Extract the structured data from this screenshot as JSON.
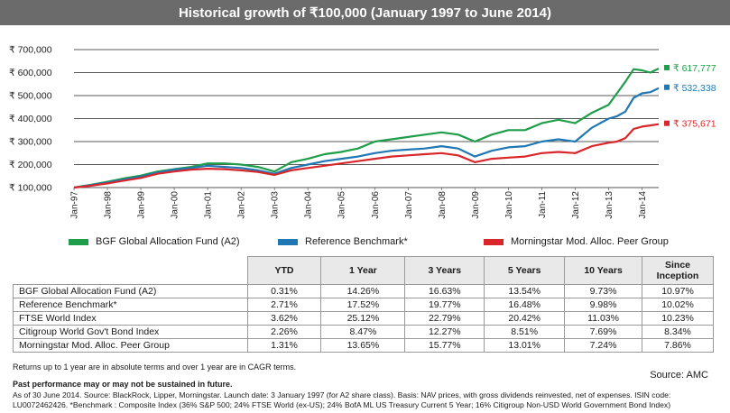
{
  "title": "Historical growth of ₹100,000 (January 1997 to June 2014)",
  "chart_data": {
    "type": "line",
    "y_ticks": [
      "₹ 100,000",
      "₹ 200,000",
      "₹ 300,000",
      "₹ 400,000",
      "₹ 500,000",
      "₹ 600,000",
      "₹ 700,000"
    ],
    "ylim": [
      100000,
      700000
    ],
    "grid": true,
    "x_ticks": [
      "Jan-97",
      "Jan-98",
      "Jan-99",
      "Jan-00",
      "Jan-01",
      "Jan-02",
      "Jan-03",
      "Jan-04",
      "Jan-05",
      "Jan-06",
      "Jan-07",
      "Jan-08",
      "Jan-09",
      "Jan-10",
      "Jan-11",
      "Jan-12",
      "Jan-13",
      "Jan-14"
    ],
    "xlim": [
      1997.0,
      2014.5
    ],
    "legend_position": "bottom",
    "series": [
      {
        "name": "BGF Global Allocation Fund (A2)",
        "color": "#1e9e48",
        "end_label": "₹ 617,777",
        "points": [
          [
            1997.0,
            100000
          ],
          [
            1997.5,
            112000
          ],
          [
            1998.0,
            125000
          ],
          [
            1998.5,
            140000
          ],
          [
            1999.0,
            152000
          ],
          [
            1999.5,
            170000
          ],
          [
            2000.0,
            180000
          ],
          [
            2000.5,
            190000
          ],
          [
            2001.0,
            205000
          ],
          [
            2001.5,
            205000
          ],
          [
            2002.0,
            200000
          ],
          [
            2002.5,
            190000
          ],
          [
            2003.0,
            170000
          ],
          [
            2003.5,
            210000
          ],
          [
            2004.0,
            225000
          ],
          [
            2004.5,
            245000
          ],
          [
            2005.0,
            255000
          ],
          [
            2005.5,
            270000
          ],
          [
            2006.0,
            300000
          ],
          [
            2006.5,
            310000
          ],
          [
            2007.0,
            320000
          ],
          [
            2007.5,
            330000
          ],
          [
            2008.0,
            340000
          ],
          [
            2008.5,
            330000
          ],
          [
            2009.0,
            300000
          ],
          [
            2009.5,
            330000
          ],
          [
            2010.0,
            350000
          ],
          [
            2010.5,
            350000
          ],
          [
            2011.0,
            380000
          ],
          [
            2011.5,
            395000
          ],
          [
            2012.0,
            380000
          ],
          [
            2012.5,
            425000
          ],
          [
            2013.0,
            460000
          ],
          [
            2013.25,
            510000
          ],
          [
            2013.5,
            560000
          ],
          [
            2013.75,
            615000
          ],
          [
            2014.0,
            610000
          ],
          [
            2014.25,
            600000
          ],
          [
            2014.5,
            617777
          ]
        ]
      },
      {
        "name": "Reference Benchmark*",
        "color": "#1f78b4",
        "end_label": "₹ 532,338",
        "points": [
          [
            1997.0,
            100000
          ],
          [
            1997.5,
            110000
          ],
          [
            1998.0,
            122000
          ],
          [
            1998.5,
            135000
          ],
          [
            1999.0,
            148000
          ],
          [
            1999.5,
            165000
          ],
          [
            2000.0,
            178000
          ],
          [
            2000.5,
            185000
          ],
          [
            2001.0,
            195000
          ],
          [
            2001.5,
            190000
          ],
          [
            2002.0,
            185000
          ],
          [
            2002.5,
            175000
          ],
          [
            2003.0,
            160000
          ],
          [
            2003.5,
            185000
          ],
          [
            2004.0,
            200000
          ],
          [
            2004.5,
            215000
          ],
          [
            2005.0,
            225000
          ],
          [
            2005.5,
            235000
          ],
          [
            2006.0,
            250000
          ],
          [
            2006.5,
            260000
          ],
          [
            2007.0,
            265000
          ],
          [
            2007.5,
            270000
          ],
          [
            2008.0,
            280000
          ],
          [
            2008.5,
            270000
          ],
          [
            2009.0,
            235000
          ],
          [
            2009.5,
            260000
          ],
          [
            2010.0,
            275000
          ],
          [
            2010.5,
            280000
          ],
          [
            2011.0,
            300000
          ],
          [
            2011.5,
            310000
          ],
          [
            2012.0,
            300000
          ],
          [
            2012.5,
            360000
          ],
          [
            2013.0,
            400000
          ],
          [
            2013.25,
            410000
          ],
          [
            2013.5,
            430000
          ],
          [
            2013.75,
            490000
          ],
          [
            2014.0,
            510000
          ],
          [
            2014.25,
            515000
          ],
          [
            2014.5,
            532338
          ]
        ]
      },
      {
        "name": "Morningstar Mod. Alloc. Peer Group",
        "color": "#d9262b",
        "end_label": "₹ 375,671",
        "points": [
          [
            1997.0,
            100000
          ],
          [
            1997.5,
            108000
          ],
          [
            1998.0,
            118000
          ],
          [
            1998.5,
            130000
          ],
          [
            1999.0,
            142000
          ],
          [
            1999.5,
            160000
          ],
          [
            2000.0,
            170000
          ],
          [
            2000.5,
            178000
          ],
          [
            2001.0,
            182000
          ],
          [
            2001.5,
            180000
          ],
          [
            2002.0,
            175000
          ],
          [
            2002.5,
            168000
          ],
          [
            2003.0,
            155000
          ],
          [
            2003.5,
            175000
          ],
          [
            2004.0,
            185000
          ],
          [
            2004.5,
            195000
          ],
          [
            2005.0,
            205000
          ],
          [
            2005.5,
            215000
          ],
          [
            2006.0,
            225000
          ],
          [
            2006.5,
            235000
          ],
          [
            2007.0,
            240000
          ],
          [
            2007.5,
            245000
          ],
          [
            2008.0,
            250000
          ],
          [
            2008.5,
            240000
          ],
          [
            2009.0,
            210000
          ],
          [
            2009.5,
            225000
          ],
          [
            2010.0,
            230000
          ],
          [
            2010.5,
            235000
          ],
          [
            2011.0,
            250000
          ],
          [
            2011.5,
            255000
          ],
          [
            2012.0,
            250000
          ],
          [
            2012.5,
            280000
          ],
          [
            2013.0,
            295000
          ],
          [
            2013.25,
            300000
          ],
          [
            2013.5,
            315000
          ],
          [
            2013.75,
            355000
          ],
          [
            2014.0,
            365000
          ],
          [
            2014.25,
            370000
          ],
          [
            2014.5,
            375671
          ]
        ]
      }
    ]
  },
  "legend": [
    {
      "label": "BGF Global Allocation Fund (A2)",
      "color": "#1e9e48"
    },
    {
      "label": "Reference Benchmark*",
      "color": "#1f78b4"
    },
    {
      "label": "Morningstar Mod. Alloc. Peer Group",
      "color": "#d9262b"
    }
  ],
  "table": {
    "headers": [
      "",
      "YTD",
      "1 Year",
      "3 Years",
      "5 Years",
      "10 Years",
      "Since Inception"
    ],
    "rows": [
      [
        "BGF Global Allocation Fund (A2)",
        "0.31%",
        "14.26%",
        "16.63%",
        "13.54%",
        "9.73%",
        "10.97%"
      ],
      [
        "Reference Benchmark*",
        "2.71%",
        "17.52%",
        "19.77%",
        "16.48%",
        "9.98%",
        "10.02%"
      ],
      [
        "FTSE World Index",
        "3.62%",
        "25.12%",
        "22.79%",
        "20.42%",
        "11.03%",
        "10.23%"
      ],
      [
        "Citigroup World Gov't Bond Index",
        "2.26%",
        "8.47%",
        "12.27%",
        "8.51%",
        "7.69%",
        "8.34%"
      ],
      [
        "Morningstar Mod. Alloc. Peer Group",
        "1.31%",
        "13.65%",
        "15.77%",
        "13.01%",
        "7.24%",
        "7.86%"
      ]
    ]
  },
  "note": "Returns up to 1 year are in absolute terms and over 1 year are in CAGR terms.",
  "source": "Source: AMC",
  "disclaimer": "Past performance may or may not be sustained in future.",
  "footnote": "As of 30 June 2014. Source: BlackRock, Lipper, Morningstar. Launch date: 3 January 1997 (for A2 share class). Basis: NAV prices, with gross dividends reinvested, net of expenses. ISIN code: LU0072462426. *Benchmark : Composite Index (36% S&P 500; 24% FTSE World (ex-US); 24% BofA ML US Treasury Current 5 Year; 16% Citigroup Non-USD World Government Bond Index)"
}
